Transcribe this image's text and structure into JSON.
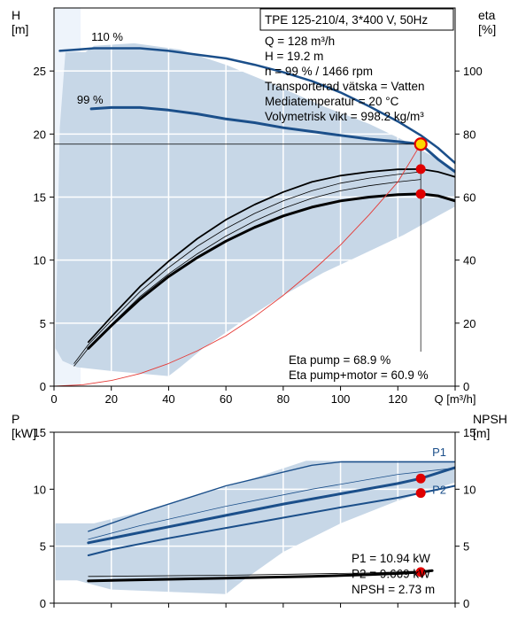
{
  "chart_data": [
    {
      "type": "line",
      "title": "TPE 125-210/4, 3*400 V, 50Hz",
      "xlabel": "Q [m³/h]",
      "ylabel_left": "H\n[m]",
      "ylabel_right": "eta\n[%]",
      "xlim": [
        0,
        140
      ],
      "ylim_left": [
        0,
        30
      ],
      "ylim_right": [
        0,
        120
      ],
      "x_ticks": [
        0,
        20,
        40,
        60,
        80,
        100,
        120,
        140
      ],
      "x_tick_labels": [
        "0",
        "20",
        "40",
        "60",
        "80",
        "100",
        "120",
        "Q [m³/h]"
      ],
      "y_ticks_left": [
        0,
        5,
        10,
        15,
        20,
        25
      ],
      "y_ticks_right": [
        0,
        20,
        40,
        60,
        80,
        100
      ],
      "grid": true,
      "operating_range": [
        [
          0.5,
          3
        ],
        [
          2,
          20.5
        ],
        [
          4,
          26.5
        ],
        [
          11,
          26.5
        ],
        [
          14,
          27
        ],
        [
          28,
          27.2
        ],
        [
          44,
          26.7
        ],
        [
          60,
          25.5
        ],
        [
          76,
          24
        ],
        [
          94,
          22.2
        ],
        [
          110,
          20.8
        ],
        [
          122,
          19.5
        ],
        [
          134,
          18
        ],
        [
          142,
          16.5
        ],
        [
          145,
          16.5
        ],
        [
          142,
          14.5
        ],
        [
          134,
          13.5
        ],
        [
          122,
          12
        ],
        [
          108,
          10.5
        ],
        [
          94,
          9
        ],
        [
          80,
          7.2
        ],
        [
          66,
          5.2
        ],
        [
          52,
          3
        ],
        [
          44,
          1.5
        ],
        [
          40,
          0.8
        ],
        [
          20,
          1.2
        ],
        [
          8,
          1.5
        ],
        [
          3,
          2
        ]
      ],
      "series": [
        {
          "name": "110 %",
          "kind": "head",
          "color": "#1b4f8a",
          "width": 2.5,
          "x": [
            2,
            8,
            14,
            20,
            30,
            40,
            50,
            60,
            70,
            80,
            90,
            100,
            110,
            120,
            128,
            134,
            140,
            145
          ],
          "y": [
            26.6,
            26.7,
            26.8,
            26.8,
            26.8,
            26.6,
            26.3,
            26.0,
            25.5,
            24.9,
            24.2,
            23.3,
            22.2,
            21.0,
            19.9,
            18.9,
            17.7,
            16.5
          ]
        },
        {
          "name": "99 %",
          "kind": "head",
          "color": "#1b4f8a",
          "width": 3,
          "x": [
            13,
            20,
            30,
            40,
            50,
            60,
            70,
            80,
            90,
            100,
            110,
            120,
            128,
            134,
            140,
            145
          ],
          "y": [
            22.0,
            22.1,
            22.1,
            21.9,
            21.6,
            21.2,
            20.9,
            20.5,
            20.2,
            19.9,
            19.6,
            19.4,
            19.2,
            18.0,
            17.0,
            16.0
          ]
        },
        {
          "kind": "eta",
          "color": "#000000",
          "width": 3,
          "x": [
            12,
            20,
            30,
            40,
            50,
            60,
            70,
            80,
            90,
            100,
            110,
            120,
            128,
            134,
            140,
            145
          ],
          "y": [
            3.0,
            4.8,
            6.9,
            8.7,
            10.2,
            11.5,
            12.6,
            13.5,
            14.2,
            14.7,
            15.0,
            15.2,
            15.25,
            15.1,
            14.7,
            14.1
          ]
        },
        {
          "kind": "eta",
          "color": "#000000",
          "width": 1.8,
          "x": [
            12,
            20,
            30,
            40,
            50,
            60,
            70,
            80,
            90,
            100,
            110,
            120,
            128,
            134,
            140,
            145
          ],
          "y": [
            3.5,
            5.5,
            7.9,
            9.9,
            11.7,
            13.2,
            14.4,
            15.4,
            16.2,
            16.7,
            17.0,
            17.2,
            17.22,
            17.0,
            16.6,
            15.9
          ]
        },
        {
          "kind": "eta",
          "color": "#000000",
          "width": 0.8,
          "x": [
            7,
            12,
            20,
            30,
            40,
            50,
            60,
            70,
            80,
            90,
            100,
            110,
            120,
            128
          ],
          "y": [
            1.8,
            3.3,
            5.2,
            7.5,
            9.4,
            11.1,
            12.5,
            13.7,
            14.7,
            15.5,
            16.1,
            16.5,
            16.8,
            17.0
          ]
        },
        {
          "kind": "eta",
          "color": "#000000",
          "width": 0.8,
          "x": [
            7,
            12,
            20,
            30,
            40,
            50,
            60,
            70,
            80,
            90,
            100,
            110,
            120,
            128
          ],
          "y": [
            1.6,
            3.0,
            4.9,
            7.1,
            8.9,
            10.5,
            11.9,
            13.1,
            14.1,
            14.9,
            15.5,
            15.9,
            16.2,
            16.4
          ]
        },
        {
          "kind": "system",
          "color": "#e53935",
          "width": 0.9,
          "x": [
            0,
            10,
            20,
            30,
            40,
            50,
            60,
            70,
            80,
            90,
            100,
            110,
            120,
            128
          ],
          "y": [
            0,
            0.11,
            0.45,
            1.0,
            1.8,
            2.8,
            4.0,
            5.5,
            7.2,
            9.1,
            11.2,
            13.6,
            16.2,
            19.2
          ]
        }
      ],
      "operating_point": {
        "x": 128,
        "y": 19.2
      },
      "points": [
        {
          "x": 128,
          "y": 17.22
        },
        {
          "x": 128,
          "y": 15.25
        }
      ],
      "info_lines": [
        "Q = 128 m³/h",
        "H = 19.2 m",
        "n = 99 % / 1466 rpm",
        "Transporterad vätska = Vatten",
        "Mediatemperatur = 20 °C",
        "Volymetrisk vikt = 998.2 kg/m³"
      ],
      "efficiency_lines": [
        "Eta pump = 68.9 %",
        "Eta pump+motor = 60.9 %"
      ]
    },
    {
      "type": "line",
      "ylabel_left": "P\n[kW]",
      "ylabel_right": "NPSH\n[m]",
      "xlim": [
        0,
        140
      ],
      "ylim": [
        0,
        15
      ],
      "y_ticks": [
        0,
        5,
        10,
        15
      ],
      "grid": true,
      "operating_range": [
        [
          0.5,
          7.0
        ],
        [
          14,
          7.0
        ],
        [
          30,
          8.0
        ],
        [
          50,
          9.5
        ],
        [
          70,
          11.0
        ],
        [
          88,
          12.5
        ],
        [
          108,
          12.5
        ],
        [
          145,
          12.5
        ],
        [
          145,
          11.0
        ],
        [
          120,
          9.0
        ],
        [
          100,
          7.0
        ],
        [
          80,
          4.5
        ],
        [
          66,
          2.0
        ],
        [
          60,
          0.8
        ],
        [
          20,
          1.2
        ],
        [
          8,
          2.0
        ],
        [
          0.5,
          2.0
        ]
      ],
      "series": [
        {
          "name": "P1",
          "kind": "power",
          "color": "#1b4f8a",
          "width": 3,
          "x": [
            12,
            20,
            40,
            60,
            80,
            100,
            120,
            128,
            140,
            145
          ],
          "y": [
            5.3,
            5.7,
            6.7,
            7.7,
            8.7,
            9.6,
            10.5,
            10.94,
            11.9,
            12.2
          ]
        },
        {
          "name": "P2",
          "kind": "power",
          "color": "#1b4f8a",
          "width": 2,
          "x": [
            12,
            20,
            40,
            60,
            80,
            100,
            120,
            128,
            140,
            145
          ],
          "y": [
            4.2,
            4.7,
            5.7,
            6.6,
            7.5,
            8.4,
            9.25,
            9.669,
            10.3,
            10.7
          ]
        },
        {
          "kind": "power-max",
          "color": "#1b4f8a",
          "width": 1.4,
          "x": [
            12,
            30,
            60,
            90,
            100,
            145
          ],
          "y": [
            6.3,
            7.9,
            10.3,
            12.1,
            12.4,
            12.4
          ]
        },
        {
          "kind": "power-aux",
          "color": "#1b4f8a",
          "width": 0.8,
          "x": [
            12,
            30,
            60,
            90,
            120,
            145
          ],
          "y": [
            5.6,
            6.8,
            8.5,
            10.0,
            11.3,
            12.0
          ]
        },
        {
          "kind": "npsh",
          "color": "#000000",
          "width": 3,
          "x": [
            12,
            30,
            60,
            90,
            110,
            120,
            128,
            132
          ],
          "y": [
            1.95,
            2.05,
            2.2,
            2.35,
            2.5,
            2.6,
            2.73,
            2.85
          ]
        },
        {
          "kind": "npsh-aux",
          "color": "#000000",
          "width": 0.8,
          "x": [
            12,
            60,
            110,
            132
          ],
          "y": [
            2.35,
            2.45,
            2.65,
            2.85
          ]
        }
      ],
      "points": [
        {
          "x": 128,
          "y": 10.94
        },
        {
          "x": 128,
          "y": 9.669
        },
        {
          "x": 128,
          "y": 2.73
        }
      ],
      "info_lines": [
        "P1 = 10.94 kW",
        "P2 = 9.669 kW",
        "NPSH = 2.73 m"
      ]
    }
  ]
}
